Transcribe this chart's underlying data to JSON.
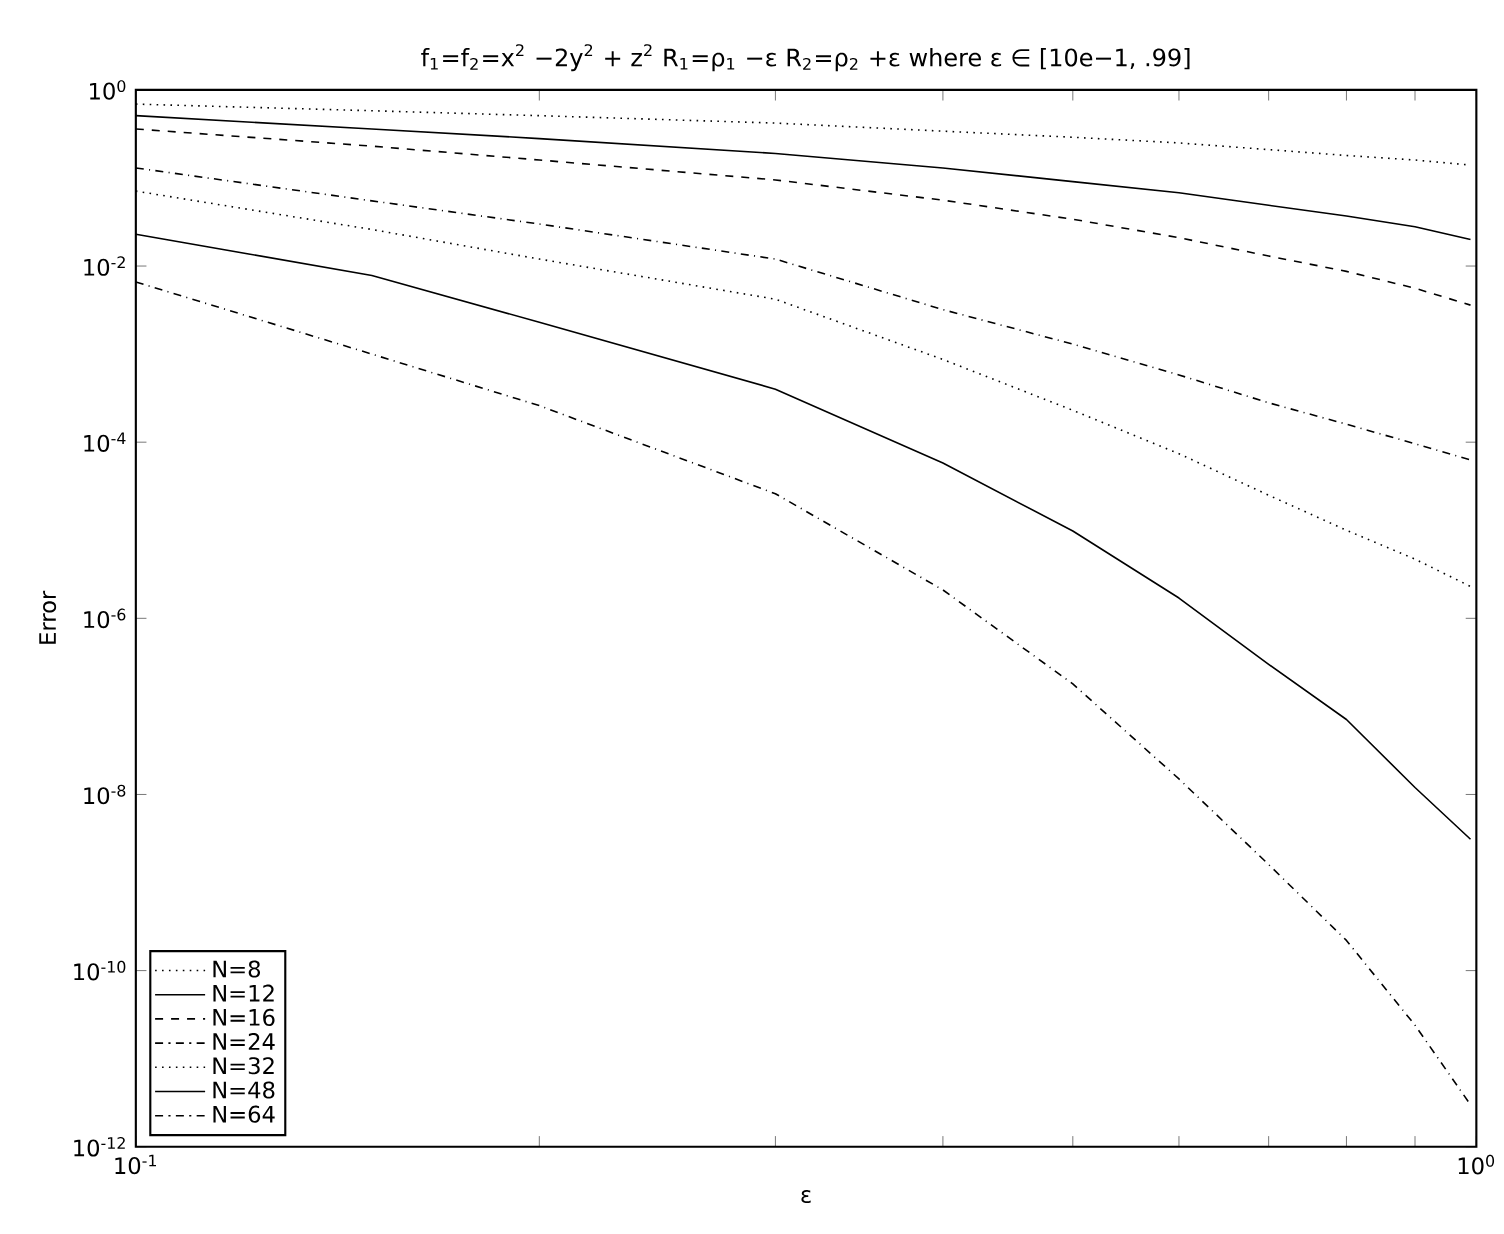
{
  "chart_data": {
    "type": "line",
    "title": "f$_{1}$=f$_{2}$=x$^{2}$ −2y$^{2}$ + z$^{2}$    R$_{1}$=ρ$_{1}$ −ε     R$_{2}$=ρ$_{2}$ +ε          where ε ∈ [10e−1, .99]",
    "xlabel": "ε",
    "ylabel": "Error",
    "x": [
      0.1,
      0.15,
      0.2,
      0.3,
      0.4,
      0.5,
      0.6,
      0.7,
      0.8,
      0.9,
      0.99
    ],
    "series": [
      {
        "name": "N=8",
        "color": "#000000",
        "line_style": "dotted",
        "values": [
          0.69,
          0.58,
          0.51,
          0.42,
          0.34,
          0.29,
          0.25,
          0.21,
          0.18,
          0.16,
          0.14
        ]
      },
      {
        "name": "N=12",
        "color": "#000000",
        "line_style": "solid",
        "values": [
          0.51,
          0.36,
          0.28,
          0.19,
          0.13,
          0.091,
          0.068,
          0.049,
          0.037,
          0.028,
          0.02
        ]
      },
      {
        "name": "N=16",
        "color": "#000000",
        "line_style": "dashed",
        "values": [
          0.36,
          0.23,
          0.16,
          0.095,
          0.056,
          0.034,
          0.021,
          0.013,
          0.0087,
          0.0056,
          0.0036
        ]
      },
      {
        "name": "N=24",
        "color": "#000000",
        "line_style": "dashdot",
        "values": [
          0.13,
          0.055,
          0.03,
          0.012,
          0.0032,
          0.0013,
          0.00058,
          0.00028,
          0.00016,
          9.6e-05,
          6.3e-05
        ]
      },
      {
        "name": "N=32",
        "color": "#000000",
        "line_style": "dotted",
        "values": [
          0.071,
          0.026,
          0.012,
          0.0042,
          0.00087,
          0.00023,
          7.4e-05,
          2.5e-05,
          1e-05,
          4.7e-06,
          2.3e-06
        ]
      },
      {
        "name": "N=48",
        "color": "#000000",
        "line_style": "solid",
        "values": [
          0.023,
          0.0078,
          0.0023,
          0.0004,
          5.8e-05,
          9.8e-06,
          1.7e-06,
          3e-07,
          7.1e-08,
          1.2e-08,
          3.1e-09
        ]
      },
      {
        "name": "N=64",
        "color": "#000000",
        "line_style": "dashdot",
        "values": [
          0.0066,
          0.001,
          0.00026,
          2.6e-05,
          2.1e-06,
          1.8e-07,
          1.5e-08,
          1.6e-09,
          2.2e-10,
          2.4e-11,
          3e-12
        ]
      }
    ],
    "log": "xy",
    "xlim": [
      0.1,
      1
    ],
    "ylim": [
      1e-12,
      1
    ],
    "xticks": [
      {
        "value": 0.1,
        "label": "10$^{-1}$"
      },
      {
        "value": 0.2,
        "label": null
      },
      {
        "value": 0.3,
        "label": null
      },
      {
        "value": 0.4,
        "label": null
      },
      {
        "value": 0.5,
        "label": null
      },
      {
        "value": 0.6,
        "label": null
      },
      {
        "value": 0.7,
        "label": null
      },
      {
        "value": 0.8,
        "label": null
      },
      {
        "value": 0.9,
        "label": null
      },
      {
        "value": 1,
        "label": "10$^{0}$"
      }
    ],
    "yticks": [
      {
        "value": 1e-12,
        "label": "10$^{-12}$"
      },
      {
        "value": 1e-10,
        "label": "10$^{-10}$"
      },
      {
        "value": 1e-08,
        "label": "10$^{-8}$"
      },
      {
        "value": 1e-06,
        "label": "10$^{-6}$"
      },
      {
        "value": 0.0001,
        "label": "10$^{-4}$"
      },
      {
        "value": 0.01,
        "label": "10$^{-2}$"
      },
      {
        "value": 1,
        "label": "10$^{0}$"
      }
    ],
    "grid": false,
    "legend": "bottom left"
  }
}
